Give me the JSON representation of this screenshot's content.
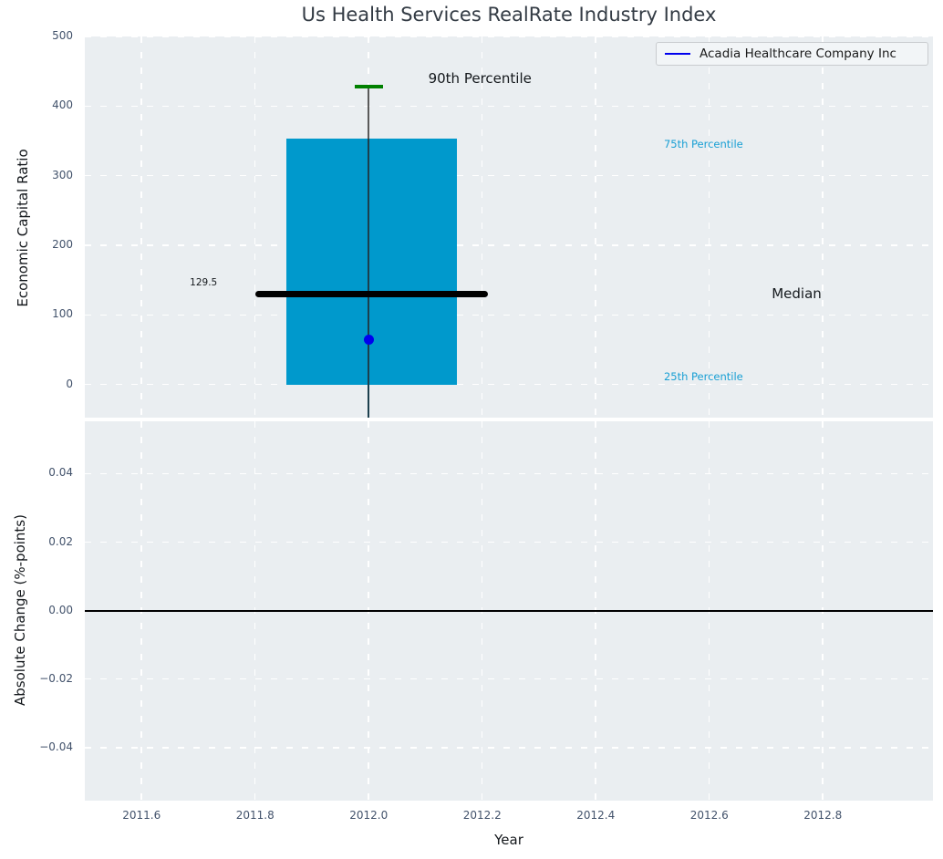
{
  "title": "Us Health Services RealRate Industry Index",
  "legend": {
    "label": "Acadia Healthcare Company Inc"
  },
  "colors": {
    "axes_bg": "#eaeef1",
    "grid": "#ffffff",
    "box_fill": "#0099cc",
    "median_line": "#000000",
    "whisker": "#5a5a5a",
    "cap_green": "#008000",
    "company_blue": "#0000ee",
    "tick_label": "#42526b",
    "annotation_cyan": "#189fd4",
    "annotation_dark": "#14181c",
    "zero_line": "#000000"
  },
  "chart_data": [
    {
      "type": "box",
      "panel": "top",
      "title": "Us Health Services RealRate Industry Index",
      "ylabel": "Economic Capital Ratio",
      "xlim": [
        2011.5,
        2012.994
      ],
      "ylim": [
        -47.5,
        500
      ],
      "grid": true,
      "legend_entries": [
        {
          "label": "Acadia Healthcare Company Inc",
          "color_key": "company_blue"
        }
      ],
      "yticks": [
        {
          "v": 0,
          "label": "0"
        },
        {
          "v": 100,
          "label": "100"
        },
        {
          "v": 200,
          "label": "200"
        },
        {
          "v": 300,
          "label": "300"
        },
        {
          "v": 400,
          "label": "400"
        },
        {
          "v": 500,
          "label": "500"
        }
      ],
      "xgrid_positions": [
        2011.6,
        2011.8,
        2012.0,
        2012.2,
        2012.4,
        2012.6,
        2012.8
      ],
      "boxes": [
        {
          "x_center": 2012.0,
          "box_span": [
            2011.855,
            2012.155
          ],
          "median_span": [
            2011.8,
            2012.21
          ],
          "cap_span": [
            2011.975,
            2012.025
          ],
          "p25": 0,
          "p75": 353,
          "median": 129.5,
          "whisker_top_90th": 428,
          "whisker_bottom": -47.5
        }
      ],
      "points": [
        {
          "x": 2012.0,
          "y": 65,
          "series": "Acadia Healthcare Company Inc",
          "color_key": "company_blue"
        }
      ],
      "annotations": [
        {
          "text": "90th Percentile",
          "x": 2012.105,
          "y": 440,
          "size": 15,
          "color_key": "annotation_dark"
        },
        {
          "text": "129.5",
          "x": 2011.685,
          "y": 146,
          "size": 10.5,
          "color_key": "annotation_dark"
        },
        {
          "text": "75th Percentile",
          "x": 2012.52,
          "y": 345,
          "size": 11.5,
          "color_key": "annotation_cyan"
        },
        {
          "text": "Median",
          "x": 2012.71,
          "y": 131,
          "size": 15,
          "color_key": "annotation_dark"
        },
        {
          "text": "25th Percentile",
          "x": 2012.52,
          "y": 11,
          "size": 11.5,
          "color_key": "annotation_cyan"
        }
      ]
    },
    {
      "type": "line",
      "panel": "bottom",
      "xlabel": "Year",
      "ylabel": "Absolute Change (%-points)",
      "xlim": [
        2011.5,
        2012.994
      ],
      "ylim": [
        -0.0555,
        0.0553
      ],
      "grid": true,
      "zero_line": 0.0,
      "yticks": [
        {
          "v": -0.04,
          "label": "−0.04"
        },
        {
          "v": -0.02,
          "label": "−0.02"
        },
        {
          "v": 0.0,
          "label": "0.00"
        },
        {
          "v": 0.02,
          "label": "0.02"
        },
        {
          "v": 0.04,
          "label": "0.04"
        }
      ],
      "xticks": [
        {
          "v": 2011.6,
          "label": "2011.6"
        },
        {
          "v": 2011.8,
          "label": "2011.8"
        },
        {
          "v": 2012.0,
          "label": "2012.0"
        },
        {
          "v": 2012.2,
          "label": "2012.2"
        },
        {
          "v": 2012.4,
          "label": "2012.4"
        },
        {
          "v": 2012.6,
          "label": "2012.6"
        },
        {
          "v": 2012.8,
          "label": "2012.8"
        }
      ]
    }
  ]
}
